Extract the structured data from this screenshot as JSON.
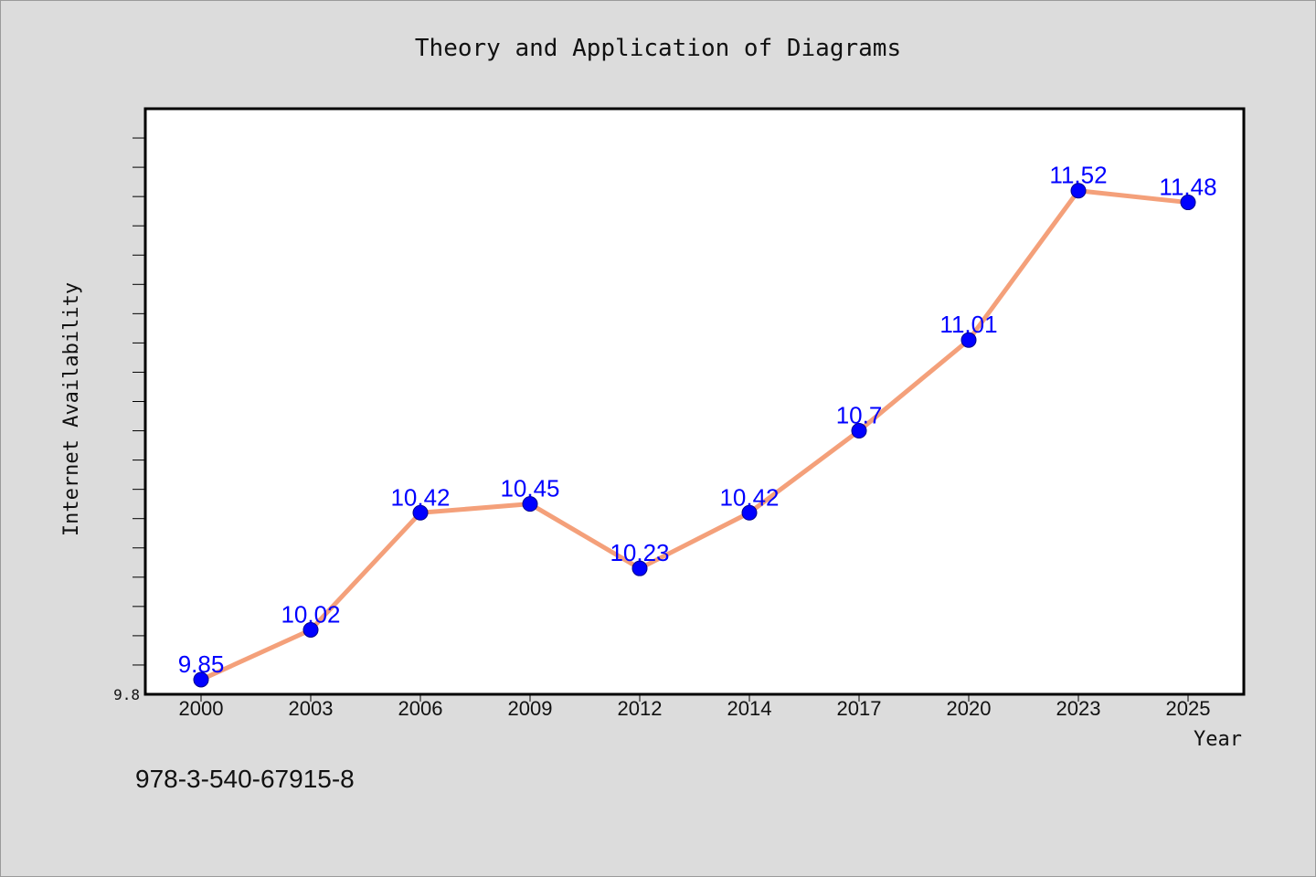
{
  "chart_data": {
    "type": "line",
    "title": "Theory and Application of Diagrams",
    "xlabel": "Year",
    "ylabel": "Internet Availability",
    "categories": [
      "2000",
      "2003",
      "2006",
      "2009",
      "2012",
      "2014",
      "2017",
      "2020",
      "2023",
      "2025"
    ],
    "series": [
      {
        "values": [
          9.85,
          10.02,
          10.42,
          10.45,
          10.23,
          10.42,
          10.7,
          11.01,
          11.52,
          11.48
        ],
        "labels": [
          "9.85",
          "10.02",
          "10.42",
          "10.45",
          "10.23",
          "10.42",
          "10.7",
          "11.01",
          "11.52",
          "11.48"
        ]
      }
    ],
    "ylim": [
      9.8,
      11.8
    ],
    "ytick_labels": [
      "9.8"
    ],
    "grid": false,
    "line_color": "#f4a07a",
    "marker_color": "#0000ff",
    "label_color": "#0000ff"
  },
  "footer": {
    "isbn": "978-3-540-67915-8"
  }
}
